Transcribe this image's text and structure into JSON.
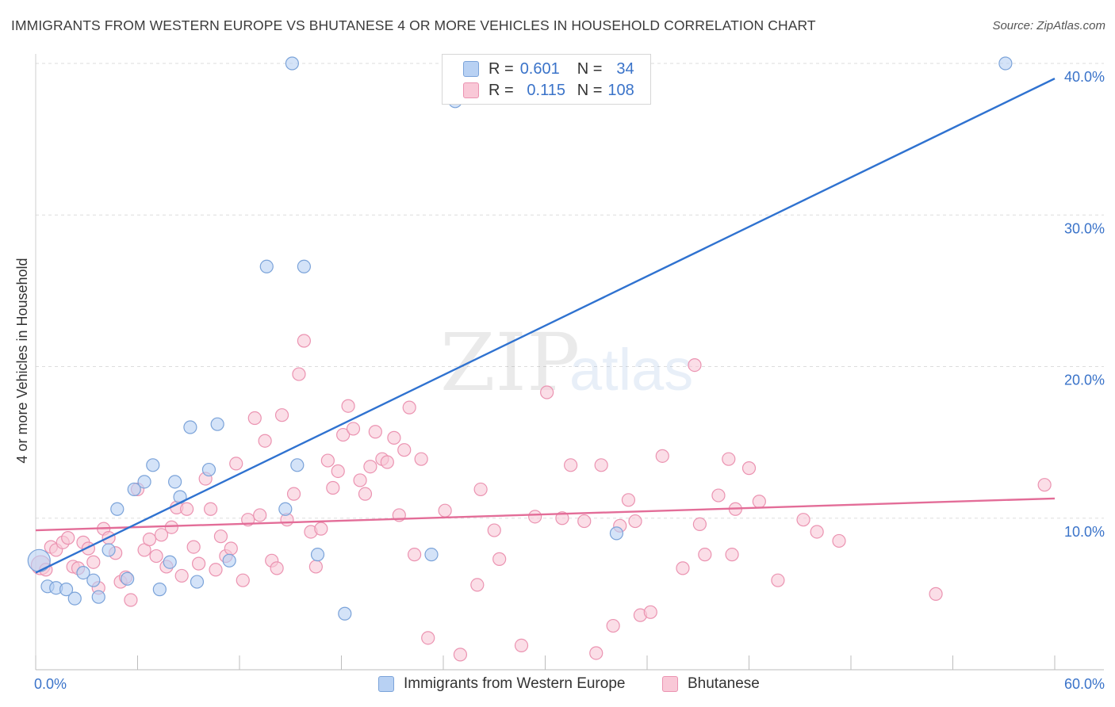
{
  "header": {
    "title": "IMMIGRANTS FROM WESTERN EUROPE VS BHUTANESE 4 OR MORE VEHICLES IN HOUSEHOLD CORRELATION CHART",
    "source": "Source: ZipAtlas.com"
  },
  "watermark": {
    "zip": "ZIP",
    "atlas": "atlas"
  },
  "legend": {
    "r_label": "R =",
    "n_label": "N =",
    "entries": [
      {
        "r": "0.601",
        "n": "34"
      },
      {
        "r": "0.115",
        "n": "108"
      }
    ]
  },
  "colors": {
    "blue_fill": "#b8d1f3",
    "blue_stroke": "#7ba3d9",
    "blue_line": "#2f72d0",
    "pink_fill": "#f9c8d7",
    "pink_stroke": "#eb93b1",
    "pink_line": "#e36d98",
    "tick_text": "#3a73c9",
    "grid": "#dddddd"
  },
  "chart_data": {
    "type": "scatter",
    "title": "IMMIGRANTS FROM WESTERN EUROPE VS BHUTANESE 4 OR MORE VEHICLES IN HOUSEHOLD CORRELATION CHART",
    "xlabel": "",
    "ylabel": "4 or more Vehicles in Household",
    "xlim": [
      0,
      60
    ],
    "ylim": [
      0,
      40
    ],
    "x_tick_labels": [
      "0.0%",
      "60.0%"
    ],
    "y_ticks": [
      10,
      20,
      30,
      40
    ],
    "y_tick_labels": [
      "10.0%",
      "20.0%",
      "30.0%",
      "40.0%"
    ],
    "grid": true,
    "series": [
      {
        "name": "Immigrants from Western Europe",
        "color": "#b8d1f3",
        "trend": {
          "x": [
            0,
            60
          ],
          "y": [
            6.4,
            39.0
          ]
        },
        "points": [
          [
            0.2,
            7.2
          ],
          [
            0.7,
            5.5
          ],
          [
            1.2,
            5.4
          ],
          [
            1.8,
            5.3
          ],
          [
            2.3,
            4.7
          ],
          [
            2.8,
            6.4
          ],
          [
            3.4,
            5.9
          ],
          [
            3.7,
            4.8
          ],
          [
            4.3,
            7.9
          ],
          [
            4.8,
            10.6
          ],
          [
            5.4,
            6.0
          ],
          [
            5.8,
            11.9
          ],
          [
            6.4,
            12.4
          ],
          [
            6.9,
            13.5
          ],
          [
            7.3,
            5.3
          ],
          [
            7.9,
            7.1
          ],
          [
            8.2,
            12.4
          ],
          [
            8.5,
            11.4
          ],
          [
            9.1,
            16.0
          ],
          [
            9.5,
            5.8
          ],
          [
            10.2,
            13.2
          ],
          [
            10.7,
            16.2
          ],
          [
            11.4,
            7.2
          ],
          [
            13.6,
            26.6
          ],
          [
            14.7,
            10.6
          ],
          [
            15.1,
            40.0
          ],
          [
            15.4,
            13.5
          ],
          [
            15.8,
            26.6
          ],
          [
            16.6,
            7.6
          ],
          [
            18.2,
            3.7
          ],
          [
            23.3,
            7.6
          ],
          [
            24.7,
            37.5
          ],
          [
            34.2,
            9.0
          ],
          [
            57.1,
            40.0
          ]
        ]
      },
      {
        "name": "Bhutanese",
        "color": "#f9c8d7",
        "trend": {
          "x": [
            0,
            60
          ],
          "y": [
            9.2,
            11.3
          ]
        },
        "points": [
          [
            0.3,
            6.9
          ],
          [
            0.6,
            6.6
          ],
          [
            0.9,
            8.1
          ],
          [
            1.2,
            7.9
          ],
          [
            1.6,
            8.4
          ],
          [
            1.9,
            8.7
          ],
          [
            2.2,
            6.8
          ],
          [
            2.5,
            6.7
          ],
          [
            2.8,
            8.4
          ],
          [
            3.1,
            8.0
          ],
          [
            3.4,
            7.1
          ],
          [
            3.7,
            5.4
          ],
          [
            4.0,
            9.3
          ],
          [
            4.3,
            8.7
          ],
          [
            4.7,
            7.7
          ],
          [
            5.0,
            5.8
          ],
          [
            5.3,
            6.1
          ],
          [
            5.6,
            4.6
          ],
          [
            6.0,
            11.9
          ],
          [
            6.4,
            7.9
          ],
          [
            6.7,
            8.6
          ],
          [
            7.1,
            7.5
          ],
          [
            7.4,
            8.9
          ],
          [
            7.7,
            6.8
          ],
          [
            8.0,
            9.4
          ],
          [
            8.3,
            10.7
          ],
          [
            8.6,
            6.2
          ],
          [
            8.9,
            10.6
          ],
          [
            9.3,
            8.1
          ],
          [
            9.6,
            7.0
          ],
          [
            10.0,
            12.6
          ],
          [
            10.3,
            10.6
          ],
          [
            10.6,
            6.6
          ],
          [
            10.9,
            8.8
          ],
          [
            11.2,
            7.5
          ],
          [
            11.5,
            8.0
          ],
          [
            11.8,
            13.6
          ],
          [
            12.2,
            5.9
          ],
          [
            12.5,
            9.9
          ],
          [
            12.9,
            16.6
          ],
          [
            13.2,
            10.2
          ],
          [
            13.5,
            15.1
          ],
          [
            13.9,
            7.2
          ],
          [
            14.2,
            6.7
          ],
          [
            14.5,
            16.8
          ],
          [
            14.8,
            9.9
          ],
          [
            15.2,
            11.6
          ],
          [
            15.5,
            19.5
          ],
          [
            15.8,
            21.7
          ],
          [
            16.2,
            9.1
          ],
          [
            16.5,
            6.8
          ],
          [
            16.8,
            9.3
          ],
          [
            17.2,
            13.8
          ],
          [
            17.5,
            12.0
          ],
          [
            17.8,
            13.1
          ],
          [
            18.1,
            15.5
          ],
          [
            18.4,
            17.4
          ],
          [
            18.7,
            15.9
          ],
          [
            19.1,
            12.5
          ],
          [
            19.4,
            11.6
          ],
          [
            19.7,
            13.4
          ],
          [
            20.0,
            15.7
          ],
          [
            20.4,
            13.9
          ],
          [
            20.7,
            13.7
          ],
          [
            21.1,
            15.3
          ],
          [
            21.4,
            10.2
          ],
          [
            21.7,
            14.5
          ],
          [
            22.0,
            17.3
          ],
          [
            22.3,
            7.6
          ],
          [
            22.7,
            13.9
          ],
          [
            23.1,
            2.1
          ],
          [
            24.1,
            10.5
          ],
          [
            25.0,
            1.0
          ],
          [
            26.0,
            5.6
          ],
          [
            26.2,
            11.9
          ],
          [
            27.0,
            9.2
          ],
          [
            27.3,
            7.3
          ],
          [
            28.6,
            1.6
          ],
          [
            29.4,
            10.1
          ],
          [
            30.1,
            18.3
          ],
          [
            31.0,
            10.0
          ],
          [
            31.5,
            13.5
          ],
          [
            32.3,
            9.8
          ],
          [
            33.0,
            1.1
          ],
          [
            33.3,
            13.5
          ],
          [
            34.0,
            2.9
          ],
          [
            34.4,
            9.5
          ],
          [
            34.9,
            11.2
          ],
          [
            35.3,
            9.8
          ],
          [
            35.6,
            3.6
          ],
          [
            36.2,
            3.8
          ],
          [
            36.9,
            14.1
          ],
          [
            38.1,
            6.7
          ],
          [
            38.8,
            20.1
          ],
          [
            39.1,
            9.6
          ],
          [
            39.4,
            7.6
          ],
          [
            40.2,
            11.5
          ],
          [
            40.8,
            13.9
          ],
          [
            41.0,
            7.6
          ],
          [
            41.2,
            10.6
          ],
          [
            42.0,
            13.3
          ],
          [
            42.6,
            11.1
          ],
          [
            43.7,
            5.9
          ],
          [
            45.2,
            9.9
          ],
          [
            46.0,
            9.1
          ],
          [
            47.3,
            8.5
          ],
          [
            53.0,
            5.0
          ],
          [
            59.4,
            12.2
          ]
        ]
      }
    ]
  },
  "bottom_legend": [
    "Immigrants from Western Europe",
    "Bhutanese"
  ]
}
